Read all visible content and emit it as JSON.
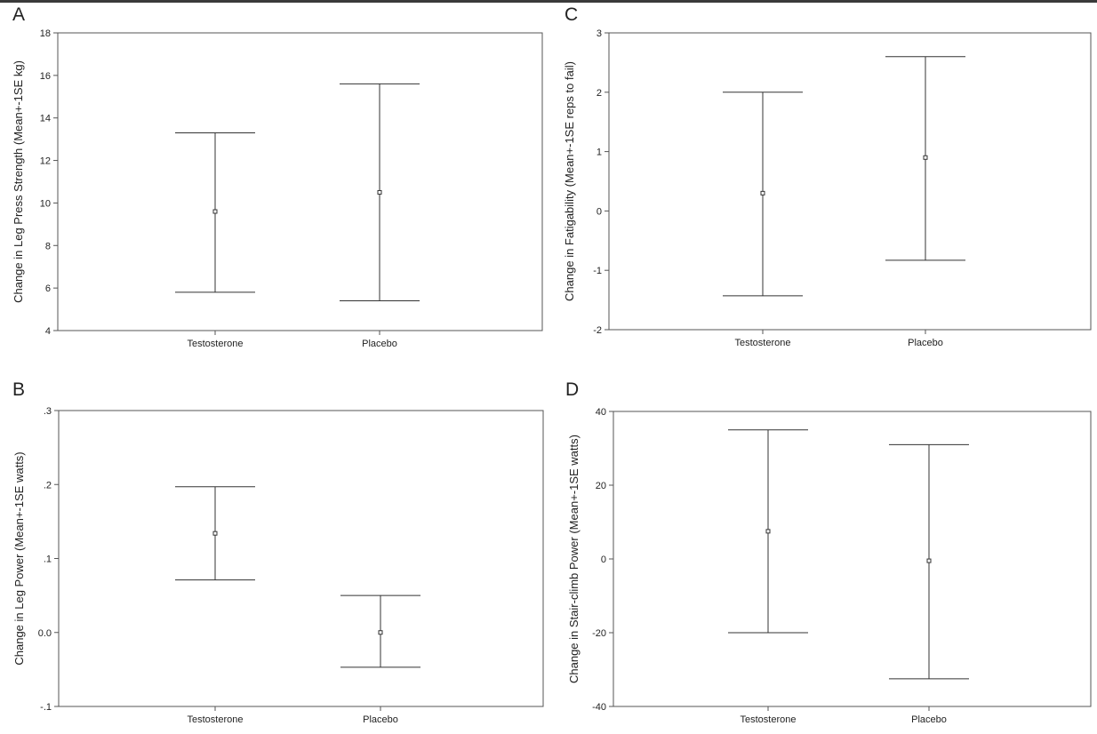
{
  "chart_data": [
    {
      "panel": "A",
      "type": "errorbar",
      "ylabel": "Change in Leg Press Strength (Mean+-1SE kg)",
      "ylim": [
        4,
        18
      ],
      "yticks": [
        "4",
        "6",
        "8",
        "10",
        "12",
        "14",
        "16",
        "18"
      ],
      "categories": [
        "Testosterone",
        "Placebo"
      ],
      "mean": [
        9.6,
        10.5
      ],
      "lower": [
        5.8,
        5.4
      ],
      "upper": [
        13.3,
        15.6
      ]
    },
    {
      "panel": "C",
      "type": "errorbar",
      "ylabel": "Change in Fatigability (Mean+-1SE reps to fail)",
      "ylim": [
        -2,
        3
      ],
      "yticks": [
        "-2",
        "-1",
        "0",
        "1",
        "2",
        "3"
      ],
      "categories": [
        "Testosterone",
        "Placebo"
      ],
      "mean": [
        0.3,
        0.9
      ],
      "lower": [
        -1.43,
        -0.83
      ],
      "upper": [
        2.0,
        2.6
      ]
    },
    {
      "panel": "B",
      "type": "errorbar",
      "ylabel": "Change in Leg Power (Mean+-1SE watts)",
      "ylim": [
        -0.1,
        0.3
      ],
      "yticks": [
        "-.1",
        "0.0",
        ".1",
        ".2",
        ".3"
      ],
      "categories": [
        "Testosterone",
        "Placebo"
      ],
      "mean": [
        0.134,
        0.0
      ],
      "lower": [
        0.071,
        -0.047
      ],
      "upper": [
        0.197,
        0.05
      ]
    },
    {
      "panel": "D",
      "type": "errorbar",
      "ylabel": "Change in Stair-climb Power (Mean+-1SE watts)",
      "ylim": [
        -40,
        40
      ],
      "yticks": [
        "-40",
        "-20",
        "0",
        "20",
        "40"
      ],
      "categories": [
        "Testosterone",
        "Placebo"
      ],
      "mean": [
        7.5,
        -0.5
      ],
      "lower": [
        -20.0,
        -32.5
      ],
      "upper": [
        35.0,
        31.0
      ]
    }
  ],
  "colors": {
    "line": "#333333",
    "frame": "#555555",
    "text": "#222222"
  }
}
